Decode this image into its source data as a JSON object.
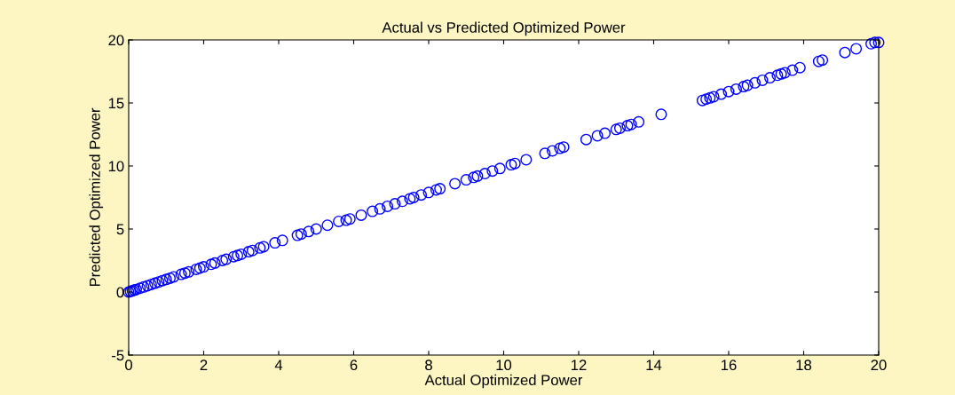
{
  "chart_data": {
    "type": "scatter",
    "title": "Actual vs Predicted Optimized Power",
    "xlabel": "Actual Optimized Power",
    "ylabel": "Predicted Optimized Power",
    "x": [
      0,
      0.05,
      0.1,
      0.15,
      0.2,
      0.3,
      0.4,
      0.5,
      0.6,
      0.7,
      0.8,
      0.9,
      1.0,
      1.1,
      1.2,
      1.4,
      1.5,
      1.6,
      1.8,
      1.9,
      2.0,
      2.2,
      2.3,
      2.5,
      2.6,
      2.8,
      2.9,
      3.0,
      3.2,
      3.3,
      3.5,
      3.6,
      3.9,
      4.1,
      4.5,
      4.6,
      4.8,
      5.0,
      5.3,
      5.6,
      5.8,
      5.9,
      6.2,
      6.5,
      6.7,
      6.9,
      7.1,
      7.3,
      7.5,
      7.6,
      7.8,
      8.0,
      8.2,
      8.3,
      8.7,
      9.0,
      9.2,
      9.3,
      9.5,
      9.7,
      9.9,
      10.2,
      10.3,
      10.6,
      11.1,
      11.3,
      11.5,
      11.6,
      12.2,
      12.5,
      12.7,
      13.0,
      13.1,
      13.3,
      13.4,
      13.6,
      14.2,
      15.3,
      15.4,
      15.5,
      15.6,
      15.8,
      16.0,
      16.2,
      16.4,
      16.5,
      16.7,
      16.9,
      17.1,
      17.3,
      17.4,
      17.5,
      17.7,
      17.9,
      18.4,
      18.5,
      19.1,
      19.4,
      19.8,
      19.9,
      20.0
    ],
    "values": [
      0,
      0.05,
      0.1,
      0.15,
      0.2,
      0.3,
      0.4,
      0.5,
      0.6,
      0.7,
      0.8,
      0.9,
      1.0,
      1.1,
      1.2,
      1.4,
      1.5,
      1.6,
      1.8,
      1.9,
      2.0,
      2.2,
      2.3,
      2.5,
      2.6,
      2.8,
      2.9,
      3.0,
      3.2,
      3.3,
      3.5,
      3.6,
      3.9,
      4.1,
      4.5,
      4.6,
      4.8,
      5.0,
      5.3,
      5.6,
      5.7,
      5.8,
      6.1,
      6.4,
      6.6,
      6.8,
      7.0,
      7.2,
      7.4,
      7.5,
      7.7,
      7.9,
      8.1,
      8.2,
      8.6,
      8.9,
      9.1,
      9.2,
      9.4,
      9.6,
      9.8,
      10.1,
      10.2,
      10.5,
      11.0,
      11.2,
      11.4,
      11.5,
      12.1,
      12.4,
      12.6,
      12.9,
      13.0,
      13.2,
      13.3,
      13.5,
      14.1,
      15.2,
      15.3,
      15.4,
      15.5,
      15.7,
      15.9,
      16.1,
      16.3,
      16.4,
      16.6,
      16.8,
      17.0,
      17.2,
      17.3,
      17.4,
      17.6,
      17.8,
      18.3,
      18.4,
      19.0,
      19.3,
      19.7,
      19.8,
      19.8
    ],
    "color": "#0000ff",
    "marker": "circle",
    "grid": false,
    "xlim": [
      0,
      20
    ],
    "xticks": [
      0,
      2,
      4,
      6,
      8,
      10,
      12,
      14,
      16,
      18,
      20
    ],
    "ylim": [
      -5,
      20
    ],
    "yticks": [
      -5,
      0,
      5,
      10,
      15,
      20
    ]
  }
}
